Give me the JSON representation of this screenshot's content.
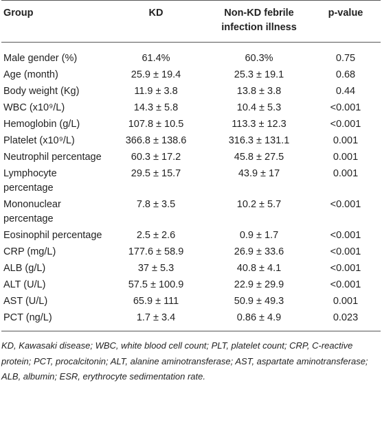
{
  "table": {
    "header": [
      "Group",
      "KD",
      "Non-KD febrile infection illness",
      "p-value"
    ],
    "rows": [
      [
        "Male gender (%)",
        "61.4%",
        "60.3%",
        "0.75"
      ],
      [
        "Age (month)",
        "25.9 ± 19.4",
        "25.3 ± 19.1",
        "0.68"
      ],
      [
        "Body weight (Kg)",
        "11.9 ± 3.8",
        "13.8 ± 3.8",
        "0.44"
      ],
      [
        "WBC (x10⁹/L)",
        "14.3 ± 5.8",
        "10.4 ± 5.3",
        "<0.001"
      ],
      [
        "Hemoglobin (g/L)",
        "107.8 ± 10.5",
        "113.3 ± 12.3",
        "<0.001"
      ],
      [
        "Platelet (x10⁹/L)",
        "366.8 ± 138.6",
        "316.3 ± 131.1",
        "0.001"
      ],
      [
        "Neutrophil percentage",
        "60.3 ± 17.2",
        "45.8 ± 27.5",
        "0.001"
      ],
      [
        "Lymphocyte percentage",
        "29.5 ± 15.7",
        "43.9 ± 17",
        "0.001"
      ],
      [
        "Mononuclear percentage",
        "7.8 ± 3.5",
        "10.2 ± 5.7",
        "<0.001"
      ],
      [
        "Eosinophil percentage",
        "2.5 ± 2.6",
        "0.9 ± 1.7",
        "<0.001"
      ],
      [
        "CRP (mg/L)",
        "177.6 ± 58.9",
        "26.9 ± 33.6",
        "<0.001"
      ],
      [
        "ALB (g/L)",
        "37 ± 5.3",
        "40.8 ± 4.1",
        "<0.001"
      ],
      [
        "ALT (U/L)",
        "57.5 ± 100.9",
        "22.9 ± 29.9",
        "<0.001"
      ],
      [
        "AST (U/L)",
        "65.9 ± 111",
        "50.9 ± 49.3",
        "0.001"
      ],
      [
        "PCT (ng/L)",
        "1.7 ± 3.4",
        "0.86 ± 4.9",
        "0.023"
      ]
    ],
    "footnote": "KD, Kawasaki disease; WBC, white blood cell count; PLT, platelet count; CRP, C-reactive protein; PCT, procalcitonin; ALT, alanine aminotransferase; AST, aspartate aminotransferase; ALB, albumin; ESR, erythrocyte sedimentation rate."
  }
}
